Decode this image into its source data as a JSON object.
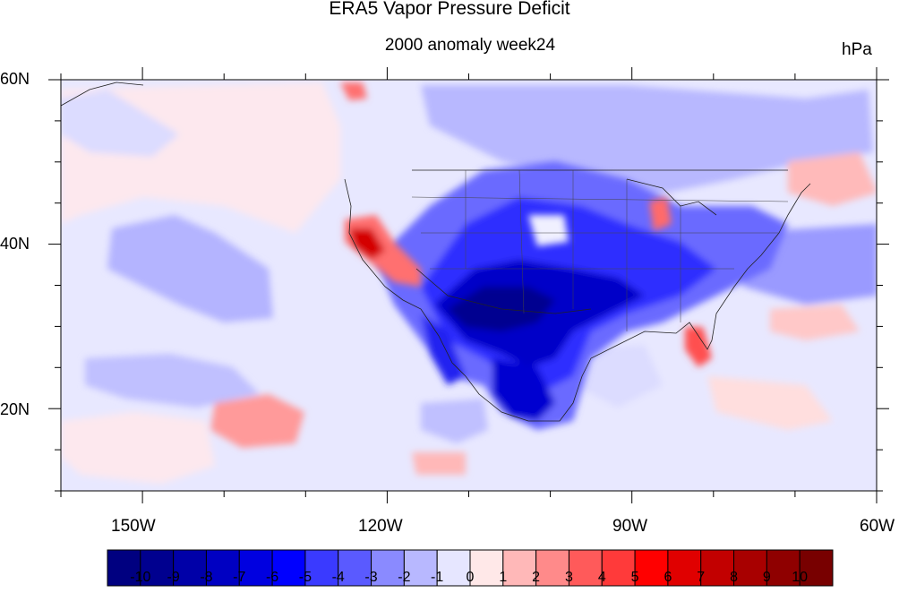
{
  "title": "ERA5 Vapor Pressure Deficit",
  "subtitle": "2000 anomaly week24",
  "units": "hPa",
  "lat_labels": [
    "60N",
    "40N",
    "20N"
  ],
  "lon_labels": [
    "150W",
    "120W",
    "90W",
    "60W"
  ],
  "colorbar": {
    "labels": [
      "-10",
      "-9",
      "-8",
      "-7",
      "-6",
      "-5",
      "-4",
      "-3",
      "-2",
      "-1",
      "0",
      "1",
      "2",
      "3",
      "4",
      "5",
      "6",
      "7",
      "8",
      "9",
      "10"
    ],
    "colors": [
      "#000080",
      "#00008f",
      "#0000a8",
      "#0000c2",
      "#0000e0",
      "#0000ff",
      "#3a3aff",
      "#5a5aff",
      "#8a8aff",
      "#b8b8ff",
      "#e6e6ff",
      "#ffe8e8",
      "#ffb8b8",
      "#ff8a8a",
      "#ff5a5a",
      "#ff3a3a",
      "#ff0000",
      "#e00000",
      "#c20000",
      "#a80000",
      "#8f0000",
      "#780000"
    ]
  },
  "map": {
    "domain": {
      "lon_min": -160,
      "lon_max": -60,
      "lat_min": 10,
      "lat_max": 60
    },
    "background_color": "#e8e8ff"
  }
}
